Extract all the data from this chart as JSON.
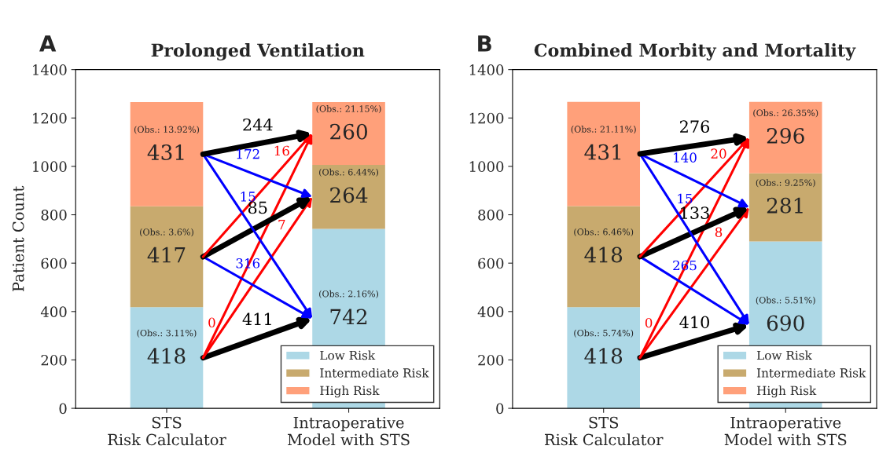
{
  "chart_data": [
    {
      "type": "bar",
      "title": "Prolonged Ventilation",
      "ylabel": "Patient Count",
      "categories": [
        "STS\nRisk Calculator",
        "Intraoperative\nModel with STS"
      ],
      "stacked": true,
      "ylim": [
        0,
        1400
      ],
      "yticks": [
        0,
        200,
        400,
        600,
        800,
        1000,
        1200,
        1400
      ],
      "legend": "bottom right",
      "annotations": [
        "A",
        "(Obs.: 3.11%)",
        "(Obs.: 2.16%)",
        "(Obs.: 3.6%)",
        "(Obs.: 6.44%)",
        "(Obs.: 13.92%)",
        "(Obs.: 21.15%)",
        "411",
        "7",
        "0",
        "316",
        "85",
        "16",
        "15",
        "172",
        "244"
      ],
      "series": [
        {
          "name": "Low Risk",
          "color": "#add8e6",
          "values": [
            418,
            742
          ],
          "value_labels": [
            "418",
            "742"
          ]
        },
        {
          "name": "Intermediate Risk",
          "color": "#c8aa6e",
          "values": [
            417,
            264
          ],
          "value_labels": [
            "417",
            "264"
          ]
        },
        {
          "name": "High Risk",
          "color": "#ffa07a",
          "values": [
            431,
            260
          ],
          "value_labels": [
            "431",
            "260"
          ]
        }
      ]
    },
    {
      "type": "bar",
      "title": "Combined Morbity and Mortality",
      "categories": [
        "STS\nRisk Calculator",
        "Intraoperative\nModel with STS"
      ],
      "stacked": true,
      "ylim": [
        0,
        1400
      ],
      "yticks": [
        0,
        200,
        400,
        600,
        800,
        1000,
        1200,
        1400
      ],
      "legend": "bottom right",
      "annotations": [
        "B",
        "(Obs.: 5.74%)",
        "(Obs.: 5.51%)",
        "(Obs.: 6.46%)",
        "(Obs.: 9.25%)",
        "(Obs.: 21.11%)",
        "(Obs.: 26.35%)",
        "410",
        "8",
        "0",
        "265",
        "133",
        "20",
        "15",
        "140",
        "276"
      ],
      "series": [
        {
          "name": "Low Risk",
          "color": "#add8e6",
          "values": [
            418,
            690
          ],
          "value_labels": [
            "418",
            "690"
          ]
        },
        {
          "name": "Intermediate Risk",
          "color": "#c8aa6e",
          "values": [
            418,
            281
          ],
          "value_labels": [
            "418",
            "281"
          ]
        },
        {
          "name": "High Risk",
          "color": "#ffa07a",
          "values": [
            431,
            296
          ],
          "value_labels": [
            "431",
            "296"
          ]
        }
      ]
    }
  ]
}
